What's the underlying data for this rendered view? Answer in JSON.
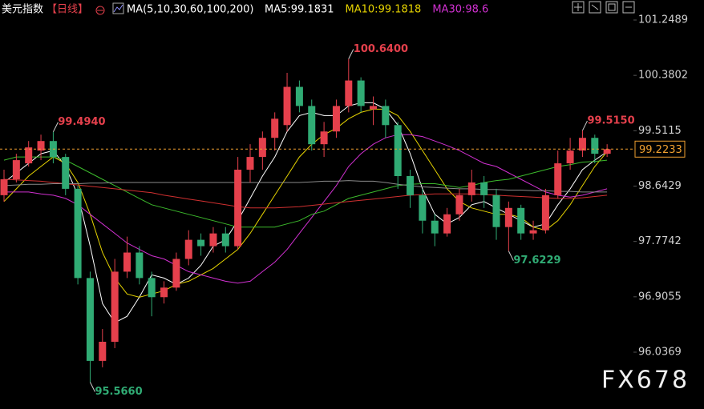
{
  "chart_data": {
    "type": "candlestick",
    "title": "美元指数",
    "period": "【日线】",
    "indicator": "MA(5,10,30,60,100,200)",
    "watermark": "FX678",
    "up_color": "#e5404c",
    "down_color": "#30ab74",
    "ylim": [
      95.145,
      101.563
    ],
    "yticks": [
      101.2489,
      100.3802,
      99.5115,
      98.6429,
      97.7742,
      96.9055,
      96.0369
    ],
    "open": [
      98.5,
      98.75,
      99.0,
      99.2,
      99.35,
      99.1,
      98.6,
      97.2,
      95.9,
      96.2,
      97.3,
      97.6,
      97.2,
      96.9,
      97.05,
      97.5,
      97.8,
      97.7,
      97.9,
      97.7,
      98.9,
      99.1,
      99.4,
      99.6,
      100.2,
      99.9,
      99.3,
      99.5,
      99.9,
      100.3,
      99.85,
      99.9,
      99.6,
      98.8,
      98.5,
      98.1,
      97.9,
      98.2,
      98.5,
      98.7,
      98.5,
      98.0,
      98.3,
      97.9,
      97.95,
      98.5,
      99.0,
      99.2,
      99.4,
      99.15
    ],
    "high": [
      98.9,
      99.15,
      99.35,
      99.45,
      99.494,
      99.15,
      98.65,
      97.3,
      96.4,
      97.5,
      97.85,
      97.7,
      97.3,
      97.15,
      97.6,
      97.95,
      97.9,
      98.0,
      98.0,
      99.1,
      99.3,
      99.5,
      99.8,
      100.42,
      100.3,
      100.0,
      99.65,
      100.0,
      100.64,
      100.35,
      100.05,
      100.0,
      99.65,
      98.9,
      98.6,
      98.2,
      98.3,
      98.6,
      98.9,
      98.8,
      98.6,
      98.4,
      98.35,
      98.1,
      98.6,
      99.2,
      99.4,
      99.515,
      99.45,
      99.3
    ],
    "low": [
      98.4,
      98.7,
      98.95,
      99.05,
      99.0,
      98.5,
      97.1,
      95.566,
      95.8,
      96.1,
      97.2,
      97.1,
      96.6,
      96.8,
      97.0,
      97.4,
      97.55,
      97.6,
      97.6,
      97.65,
      98.7,
      98.9,
      99.2,
      99.5,
      99.8,
      99.2,
      99.1,
      99.4,
      99.8,
      99.8,
      99.6,
      99.4,
      98.6,
      98.3,
      97.9,
      97.7,
      97.85,
      98.1,
      98.4,
      98.3,
      97.8,
      97.6229,
      97.8,
      97.8,
      97.9,
      98.45,
      98.9,
      99.1,
      99.0,
      99.1
    ],
    "close": [
      98.75,
      99.05,
      99.25,
      99.35,
      99.1,
      98.6,
      97.2,
      95.9,
      96.2,
      97.3,
      97.6,
      97.2,
      96.9,
      97.05,
      97.5,
      97.8,
      97.7,
      97.9,
      97.7,
      98.9,
      99.1,
      99.4,
      99.7,
      100.2,
      99.9,
      99.3,
      99.5,
      99.9,
      100.3,
      99.9,
      99.9,
      99.6,
      98.8,
      98.5,
      98.1,
      97.9,
      98.2,
      98.5,
      98.7,
      98.5,
      98.0,
      98.3,
      97.9,
      97.95,
      98.5,
      99.0,
      99.2,
      99.4,
      99.15,
      99.2233
    ],
    "high_labels": [
      {
        "value": 99.494,
        "label": "99.4940"
      },
      {
        "value": 100.64,
        "label": "100.6400"
      },
      {
        "value": 99.515,
        "label": "99.5150"
      }
    ],
    "low_labels": [
      {
        "value": 95.566,
        "label": "95.5660"
      },
      {
        "value": 97.6229,
        "label": "97.6229"
      }
    ],
    "last_price": 99.2233,
    "last_price_color": "#f0a030",
    "series": [
      {
        "name": "MA5:99.1831",
        "color": "#ffffff",
        "values": [
          98.7,
          98.85,
          99.0,
          99.15,
          99.2,
          98.95,
          98.5,
          97.7,
          96.8,
          96.5,
          96.6,
          96.9,
          97.25,
          97.2,
          97.1,
          97.2,
          97.4,
          97.7,
          97.8,
          98.1,
          98.45,
          98.8,
          99.1,
          99.5,
          99.75,
          99.8,
          99.75,
          99.75,
          99.9,
          99.95,
          99.95,
          99.85,
          99.6,
          99.15,
          98.6,
          98.2,
          98.05,
          98.15,
          98.35,
          98.4,
          98.3,
          98.2,
          98.1,
          98.0,
          98.05,
          98.35,
          98.6,
          98.9,
          99.05,
          99.1831
        ]
      },
      {
        "name": "MA10:99.1818",
        "color": "#e6d300",
        "values": [
          98.4,
          98.6,
          98.8,
          98.95,
          99.1,
          99.0,
          98.7,
          98.2,
          97.6,
          97.2,
          96.95,
          96.9,
          96.95,
          97.0,
          97.1,
          97.15,
          97.25,
          97.35,
          97.5,
          97.65,
          97.9,
          98.2,
          98.5,
          98.8,
          99.1,
          99.3,
          99.45,
          99.55,
          99.7,
          99.8,
          99.85,
          99.85,
          99.75,
          99.5,
          99.2,
          98.9,
          98.6,
          98.4,
          98.3,
          98.25,
          98.2,
          98.2,
          98.15,
          98.0,
          97.95,
          98.1,
          98.35,
          98.65,
          98.95,
          99.1818
        ]
      },
      {
        "name": "MA30:98.6",
        "color": "#d030d0",
        "values": [
          98.55,
          98.55,
          98.55,
          98.52,
          98.5,
          98.45,
          98.35,
          98.2,
          98.05,
          97.9,
          97.75,
          97.65,
          97.55,
          97.5,
          97.4,
          97.3,
          97.25,
          97.2,
          97.15,
          97.12,
          97.15,
          97.3,
          97.45,
          97.65,
          97.9,
          98.15,
          98.4,
          98.65,
          98.95,
          99.15,
          99.3,
          99.4,
          99.45,
          99.45,
          99.42,
          99.35,
          99.28,
          99.2,
          99.1,
          99.0,
          98.95,
          98.85,
          98.75,
          98.65,
          98.55,
          98.5,
          98.47,
          98.5,
          98.55,
          98.6
        ]
      },
      {
        "color": "#3cba2c",
        "values": [
          99.05,
          99.1,
          99.1,
          99.1,
          99.1,
          99.05,
          98.95,
          98.85,
          98.75,
          98.65,
          98.55,
          98.45,
          98.35,
          98.3,
          98.25,
          98.2,
          98.15,
          98.1,
          98.05,
          98.0,
          98.0,
          98.0,
          98.0,
          98.05,
          98.1,
          98.2,
          98.25,
          98.35,
          98.45,
          98.5,
          98.55,
          98.6,
          98.65,
          98.67,
          98.68,
          98.68,
          98.65,
          98.62,
          98.65,
          98.7,
          98.73,
          98.75,
          98.8,
          98.85,
          98.9,
          98.95,
          98.98,
          99.02,
          99.03,
          99.05
        ]
      },
      {
        "color": "#d03030",
        "values": [
          98.75,
          98.74,
          98.73,
          98.72,
          98.7,
          98.68,
          98.66,
          98.64,
          98.62,
          98.6,
          98.58,
          98.56,
          98.54,
          98.5,
          98.47,
          98.44,
          98.41,
          98.38,
          98.35,
          98.32,
          98.3,
          98.3,
          98.3,
          98.31,
          98.32,
          98.34,
          98.36,
          98.38,
          98.4,
          98.42,
          98.44,
          98.46,
          98.48,
          98.5,
          98.51,
          98.52,
          98.52,
          98.52,
          98.52,
          98.51,
          98.5,
          98.49,
          98.48,
          98.47,
          98.46,
          98.45,
          98.45,
          98.46,
          98.48,
          98.5
        ]
      },
      {
        "color": "#8a8a8a",
        "values": [
          98.65,
          98.66,
          98.67,
          98.67,
          98.68,
          98.68,
          98.68,
          98.69,
          98.69,
          98.7,
          98.7,
          98.7,
          98.7,
          98.7,
          98.7,
          98.7,
          98.7,
          98.7,
          98.7,
          98.7,
          98.7,
          98.7,
          98.7,
          98.7,
          98.7,
          98.71,
          98.72,
          98.72,
          98.73,
          98.72,
          98.72,
          98.7,
          98.67,
          98.65,
          98.63,
          98.62,
          98.61,
          98.6,
          98.6,
          98.59,
          98.59,
          98.58,
          98.58,
          98.57,
          98.57,
          98.56,
          98.56,
          98.55,
          98.55,
          98.55
        ]
      }
    ]
  }
}
